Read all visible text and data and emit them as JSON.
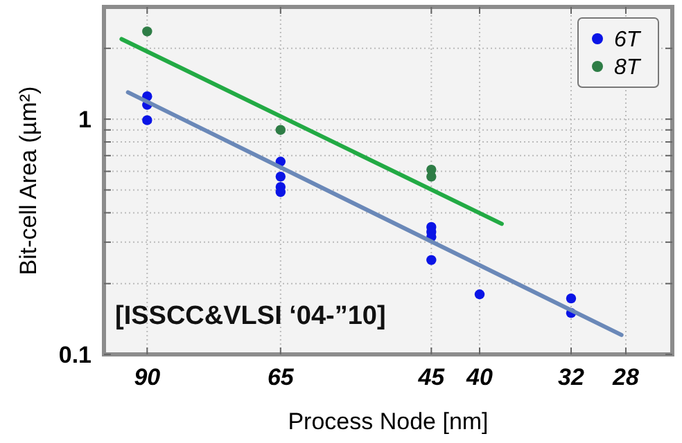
{
  "chart_data": {
    "type": "scatter",
    "xlabel": "Process Node [nm]",
    "ylabel": "Bit-cell Area (µm²)",
    "log": "xy",
    "xlim": [
      100,
      25
    ],
    "ylim": [
      0.1,
      3
    ],
    "xticks": [
      90,
      65,
      45,
      40,
      32,
      28
    ],
    "yticks": [
      0.1,
      {
        "value": 0.2,
        "label": null
      },
      {
        "value": 0.3,
        "label": null
      },
      {
        "value": 0.4,
        "label": null
      },
      {
        "value": 0.5,
        "label": null
      },
      {
        "value": 0.6,
        "label": null
      },
      {
        "value": 0.7,
        "label": null
      },
      {
        "value": 0.8,
        "label": null
      },
      {
        "value": 0.9,
        "label": null
      },
      1,
      {
        "value": 2,
        "label": null
      }
    ],
    "grid": true,
    "legend": "top right",
    "marker": "circle",
    "annotations": [
      "[ISSCC&VLSI ‘04-”10]"
    ],
    "series": [
      {
        "name": "6T",
        "color": "#0a14e6",
        "x": [
          90,
          90,
          90,
          65,
          65,
          65,
          65,
          45,
          45,
          45,
          45,
          40,
          32,
          32
        ],
        "values": [
          1.25,
          1.15,
          0.99,
          0.66,
          0.57,
          0.515,
          0.49,
          0.348,
          0.332,
          0.316,
          0.252,
          0.18,
          0.173,
          0.15
        ]
      },
      {
        "name": "8T",
        "color": "#2e7d46",
        "x": [
          90,
          65,
          45,
          45
        ],
        "values": [
          2.36,
          0.9,
          0.61,
          0.57
        ]
      },
      {
        "type": "line",
        "marker": "none",
        "color": "#6a88b8",
        "x": [
          94.3,
          28.3
        ],
        "values": [
          1.3,
          0.121
        ]
      },
      {
        "type": "line",
        "marker": "none",
        "color": "#22aa44",
        "x": [
          95.8,
          37.9
        ],
        "values": [
          2.19,
          0.359
        ]
      }
    ]
  }
}
